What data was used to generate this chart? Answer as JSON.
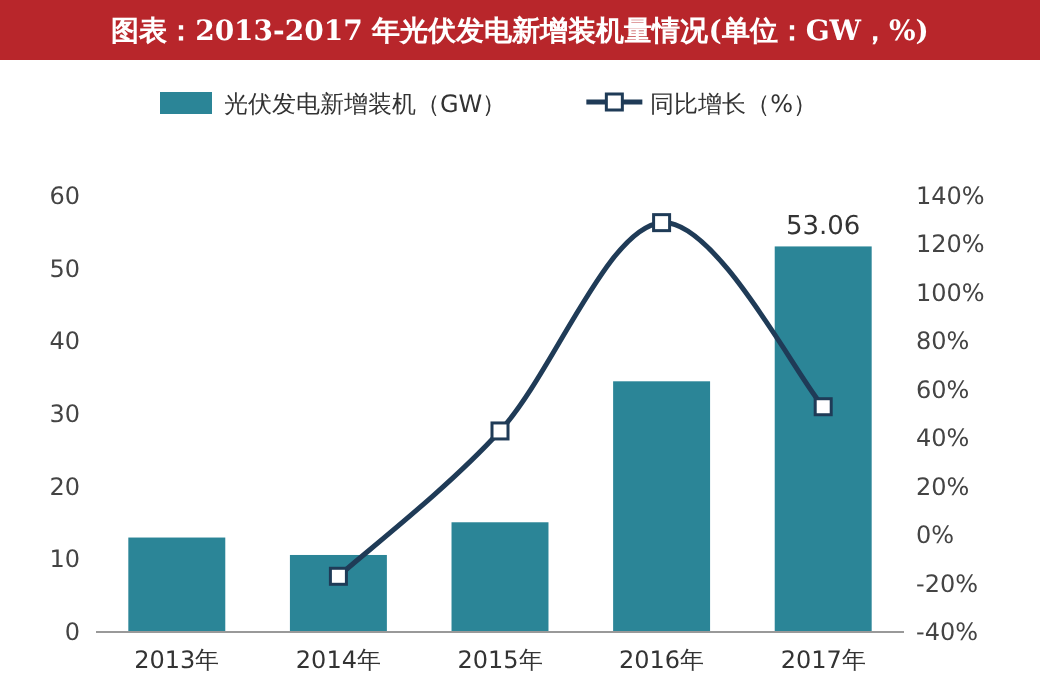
{
  "chart_data": {
    "type": "bar",
    "title": "图表：2013-2017 年光伏发电新增装机量情况(单位：GW，%)",
    "categories": [
      "2013年",
      "2014年",
      "2015年",
      "2016年",
      "2017年"
    ],
    "series": [
      {
        "name": "光伏发电新增装机（GW）",
        "color": "#2b8597",
        "values": [
          13,
          10.6,
          15.1,
          34.5,
          53.06
        ],
        "value_labels": [
          null,
          null,
          null,
          null,
          "53.06"
        ]
      },
      {
        "name": "同比增长（%）",
        "type": "line",
        "axis": "y2",
        "color": "#1f3b57",
        "values": [
          null,
          -17,
          43,
          129,
          53
        ],
        "marker": "square"
      }
    ],
    "ylim": [
      0,
      60
    ],
    "yticks": [
      0,
      10,
      20,
      30,
      40,
      50,
      60
    ],
    "y2lim": [
      -40,
      140
    ],
    "y2ticks": [
      {
        "value": -40,
        "label": "-40%"
      },
      {
        "value": -20,
        "label": "-20%"
      },
      {
        "value": 0,
        "label": "0%"
      },
      {
        "value": 20,
        "label": "20%"
      },
      {
        "value": 40,
        "label": "40%"
      },
      {
        "value": 60,
        "label": "60%"
      },
      {
        "value": 80,
        "label": "80%"
      },
      {
        "value": 100,
        "label": "100%"
      },
      {
        "value": 120,
        "label": "120%"
      },
      {
        "value": 140,
        "label": "140%"
      }
    ],
    "legend": "top",
    "grid": false
  }
}
